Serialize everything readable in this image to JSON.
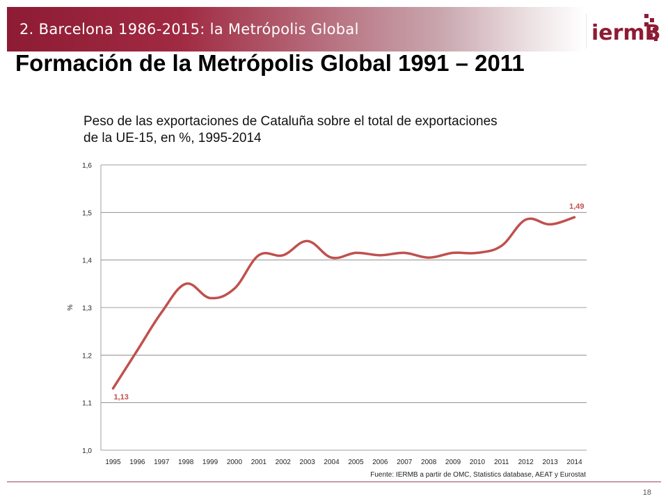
{
  "header": {
    "section": "2. Barcelona 1986-2015: la Metrópolis Global"
  },
  "logo": {
    "text": "iermB",
    "color": "#8e1b34"
  },
  "slide": {
    "title": "Formación de la Metrópolis Global 1991 – 2011",
    "page_number": "18"
  },
  "source": "Fuente: IERMB a partir de OMC, Statistics database, AEAT y Eurostat",
  "colors": {
    "accent": "#8e1b34",
    "series": "#c0504d",
    "grid": "#7f7f7f"
  },
  "chart_data": {
    "type": "line",
    "title_lines": [
      "Peso de las exportaciones de Cataluña sobre el total de exportaciones",
      "de la UE-15, en %, 1995-2014"
    ],
    "ylabel": "%",
    "ylim": [
      1.0,
      1.6
    ],
    "yticks": [
      "1,0",
      "1,1",
      "1,2",
      "1,3",
      "1,4",
      "1,5",
      "1,6"
    ],
    "grid": true,
    "categories": [
      "1995",
      "1996",
      "1997",
      "1998",
      "1999",
      "2000",
      "2001",
      "2002",
      "2003",
      "2004",
      "2005",
      "2006",
      "2007",
      "2008",
      "2009",
      "2010",
      "2011",
      "2012",
      "2013",
      "2014"
    ],
    "series": [
      {
        "values": [
          1.13,
          1.21,
          1.29,
          1.35,
          1.32,
          1.34,
          1.41,
          1.41,
          1.44,
          1.405,
          1.415,
          1.41,
          1.415,
          1.405,
          1.415,
          1.415,
          1.43,
          1.485,
          1.475,
          1.49
        ]
      }
    ],
    "annotations": [
      {
        "label": "1,13",
        "index": 0
      },
      {
        "label": "1,49",
        "index": 19
      }
    ]
  }
}
